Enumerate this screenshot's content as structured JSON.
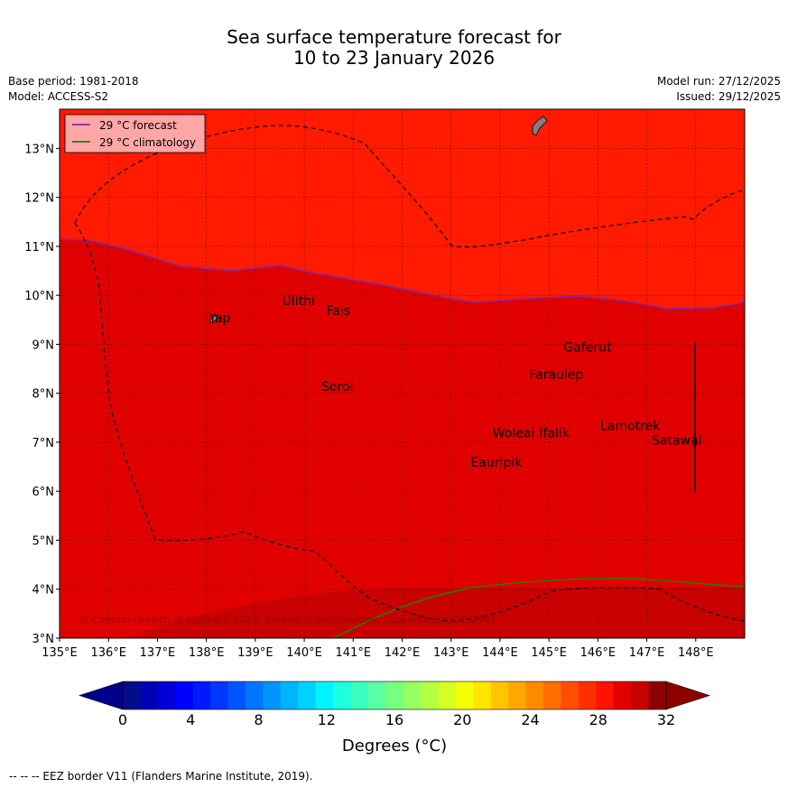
{
  "title": {
    "line1": "Sea surface temperature forecast for",
    "line2": "10 to 23 January 2026"
  },
  "meta": {
    "base_period": "Base period: 1981-2018",
    "model": "Model: ACCESS-S2",
    "model_run": "Model run: 27/12/2025",
    "issued": "Issued: 29/12/2025"
  },
  "map": {
    "lon_range": [
      135,
      149
    ],
    "lat_range": [
      3,
      13.8
    ],
    "lon_ticks": [
      "135°E",
      "136°E",
      "137°E",
      "138°E",
      "139°E",
      "140°E",
      "141°E",
      "142°E",
      "143°E",
      "144°E",
      "145°E",
      "146°E",
      "147°E",
      "148°E"
    ],
    "lat_ticks": [
      "3°N",
      "4°N",
      "5°N",
      "6°N",
      "7°N",
      "8°N",
      "9°N",
      "10°N",
      "11°N",
      "12°N",
      "13°N"
    ],
    "colors": {
      "band_28_29": "#ff1a00",
      "band_29_30": "#e10000",
      "band_30_31": "#c80000",
      "forecast_line": "#7d2aa8",
      "climatology_line": "#2c7a00",
      "land": "#808080"
    },
    "legend": {
      "forecast_label": "29 °C  forecast",
      "climatology_label": "29 °C  climatology"
    },
    "copyright": "© Commonwealth of Australia 2025, Bureau of Meteorology, supported by COSPPac",
    "places": [
      {
        "name": "Yap",
        "lon": 138.05,
        "lat": 9.45
      },
      {
        "name": "Ulithi",
        "lon": 139.55,
        "lat": 9.8
      },
      {
        "name": "Fais",
        "lon": 140.45,
        "lat": 9.6
      },
      {
        "name": "Gaferut",
        "lon": 145.3,
        "lat": 8.85
      },
      {
        "name": "Faraulep",
        "lon": 144.6,
        "lat": 8.3
      },
      {
        "name": "Sorol",
        "lon": 140.35,
        "lat": 8.05
      },
      {
        "name": "Lamotrek",
        "lon": 146.05,
        "lat": 7.25
      },
      {
        "name": "Woleai",
        "lon": 143.85,
        "lat": 7.1
      },
      {
        "name": "Ifalik",
        "lon": 144.8,
        "lat": 7.1
      },
      {
        "name": "Satawal",
        "lon": 147.1,
        "lat": 6.95
      },
      {
        "name": "Eauripik",
        "lon": 143.4,
        "lat": 6.5
      }
    ]
  },
  "colorbar": {
    "tick_labels": [
      "0",
      "4",
      "8",
      "12",
      "16",
      "20",
      "24",
      "28",
      "32"
    ],
    "label": "Degrees (°C)",
    "colors": [
      "#000e8c",
      "#0000b3",
      "#0000d6",
      "#0000ff",
      "#0019ff",
      "#0037ff",
      "#0055ff",
      "#0075ff",
      "#0094ff",
      "#00b3ff",
      "#00d2ff",
      "#00f4ff",
      "#1dffdf",
      "#3affbf",
      "#59ffa0",
      "#77ff81",
      "#96ff62",
      "#b4ff43",
      "#d3ff24",
      "#f2ff05",
      "#ffe500",
      "#ffc600",
      "#ffa800",
      "#ff8a00",
      "#ff6c00",
      "#ff4e00",
      "#ff2f00",
      "#ff1200",
      "#e10000",
      "#c80000",
      "#8c0000"
    ],
    "under_color": "#00008c",
    "over_color": "#8c0000"
  },
  "footer": "-- -- -- EEZ border V11 (Flanders Marine Institute, 2019)."
}
